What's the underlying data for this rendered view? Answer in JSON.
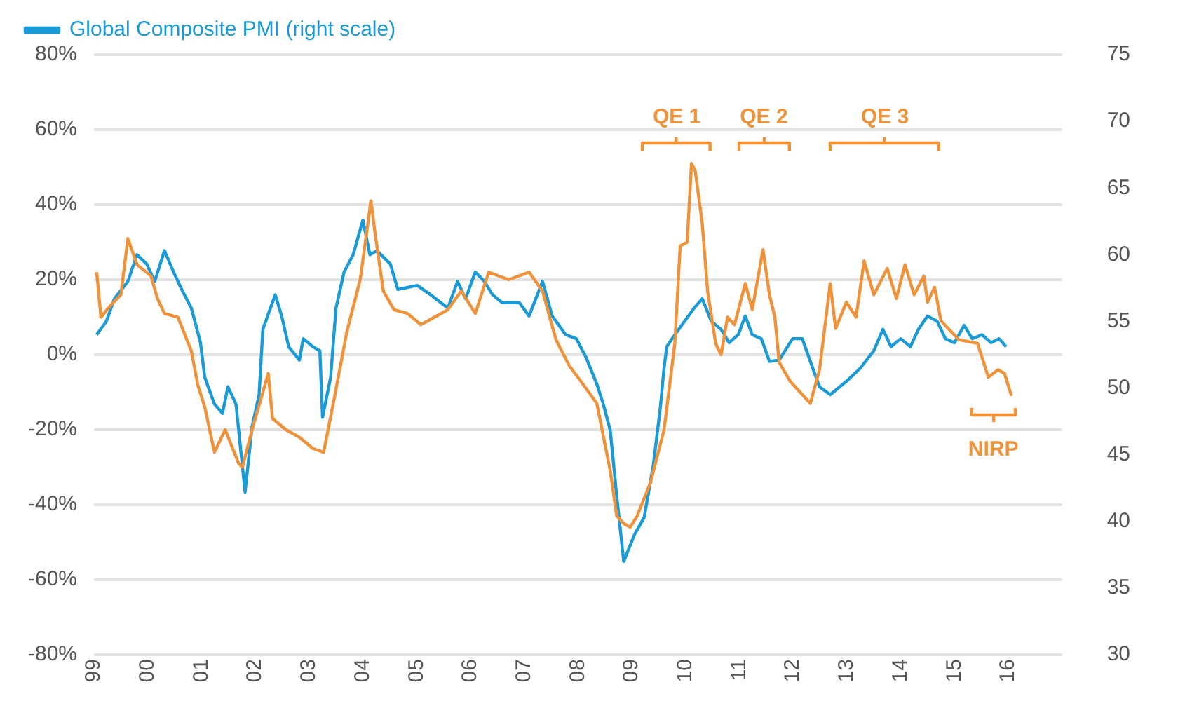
{
  "chart_data": {
    "type": "line",
    "xlim": [
      1999,
      2017
    ],
    "xticks": [
      {
        "value": 1999,
        "label": "99"
      },
      {
        "value": 2000,
        "label": "00"
      },
      {
        "value": 2001,
        "label": "01"
      },
      {
        "value": 2002,
        "label": "02"
      },
      {
        "value": 2003,
        "label": "03"
      },
      {
        "value": 2004,
        "label": "04"
      },
      {
        "value": 2005,
        "label": "05"
      },
      {
        "value": 2006,
        "label": "06"
      },
      {
        "value": 2007,
        "label": "07"
      },
      {
        "value": 2008,
        "label": "08"
      },
      {
        "value": 2009,
        "label": "09"
      },
      {
        "value": 2010,
        "label": "10"
      },
      {
        "value": 2011,
        "label": "11"
      },
      {
        "value": 2012,
        "label": "12"
      },
      {
        "value": 2013,
        "label": "13"
      },
      {
        "value": 2014,
        "label": "14"
      },
      {
        "value": 2015,
        "label": "15"
      },
      {
        "value": 2016,
        "label": "16"
      }
    ],
    "ylim": [
      -80,
      80
    ],
    "yticks": [
      {
        "value": -80,
        "label": "-80%"
      },
      {
        "value": -60,
        "label": "-60%"
      },
      {
        "value": -40,
        "label": "-40%"
      },
      {
        "value": -20,
        "label": "-20%"
      },
      {
        "value": 0,
        "label": "0%"
      },
      {
        "value": 20,
        "label": "20%"
      },
      {
        "value": 40,
        "label": "40%"
      },
      {
        "value": 60,
        "label": "60%"
      },
      {
        "value": 80,
        "label": "80%"
      }
    ],
    "y2lim": [
      30,
      75
    ],
    "y2ticks": [
      30,
      35,
      40,
      45,
      50,
      55,
      60,
      65,
      70,
      75
    ],
    "grid": "y",
    "legend": "top left",
    "series": [
      {
        "color": "#f0923a",
        "x": [
          1999.05,
          1999.13,
          1999.3,
          1999.5,
          1999.63,
          1999.8,
          2000.06,
          2000.18,
          2000.31,
          2000.56,
          2000.81,
          2000.93,
          2001.06,
          2001.24,
          2001.44,
          2001.69,
          2001.76,
          2001.94,
          2002.24,
          2002.32,
          2002.57,
          2002.82,
          2003.07,
          2003.27,
          2003.45,
          2003.7,
          2003.95,
          2004.15,
          2004.23,
          2004.38,
          2004.58,
          2004.83,
          2005.08,
          2005.33,
          2005.58,
          2005.83,
          2006.09,
          2006.34,
          2006.71,
          2007.09,
          2007.34,
          2007.59,
          2007.84,
          2008.1,
          2008.35,
          2008.6,
          2008.72,
          2008.85,
          2008.97,
          2009.1,
          2009.35,
          2009.6,
          2009.8,
          2009.9,
          2010.03,
          2010.11,
          2010.18,
          2010.31,
          2010.41,
          2010.56,
          2010.66,
          2010.78,
          2010.91,
          2011.11,
          2011.24,
          2011.44,
          2011.56,
          2011.66,
          2011.74,
          2011.94,
          2012.32,
          2012.49,
          2012.69,
          2012.79,
          2012.99,
          2013.17,
          2013.32,
          2013.5,
          2013.75,
          2013.92,
          2014.08,
          2014.25,
          2014.43,
          2014.5,
          2014.63,
          2014.75,
          2015.08,
          2015.43,
          2015.63,
          2015.81,
          2015.93,
          2016.06
        ],
        "values": [
          22,
          10,
          13,
          16,
          31,
          24,
          21,
          15,
          11,
          10,
          1,
          -8,
          -14,
          -26,
          -20,
          -29,
          -30,
          -20,
          -5,
          -17,
          -20,
          -22,
          -25,
          -26,
          -13,
          6,
          20,
          41,
          32,
          17,
          12,
          11,
          8,
          10,
          12,
          17,
          11,
          22,
          20,
          22,
          17,
          4,
          -3,
          -8,
          -13,
          -31,
          -43,
          -45,
          -46,
          -43,
          -34,
          -20,
          3,
          29,
          30,
          51,
          49,
          35,
          17,
          3,
          0,
          10,
          8,
          19,
          12,
          28,
          16,
          10,
          -2,
          -7,
          -13,
          -4,
          19,
          7,
          14,
          10,
          25,
          16,
          23,
          15,
          24,
          16,
          21,
          14,
          18,
          9,
          4,
          3,
          -6,
          -4,
          -5,
          -11
        ]
      },
      {
        "name": "Global Composite PMI (right scale)",
        "color": "#1a9ad6",
        "axis": "y2",
        "x": [
          1999.05,
          1999.23,
          1999.38,
          1999.63,
          1999.8,
          1999.98,
          2000.13,
          2000.31,
          2000.48,
          2000.63,
          2000.81,
          2000.98,
          2001.06,
          2001.24,
          2001.39,
          2001.49,
          2001.64,
          2001.81,
          2001.94,
          2002.07,
          2002.14,
          2002.37,
          2002.49,
          2002.62,
          2002.82,
          2002.89,
          2003.07,
          2003.2,
          2003.25,
          2003.4,
          2003.5,
          2003.65,
          2003.82,
          2004.0,
          2004.13,
          2004.26,
          2004.51,
          2004.65,
          2005.01,
          2005.26,
          2005.58,
          2005.76,
          2005.91,
          2006.09,
          2006.26,
          2006.41,
          2006.59,
          2006.91,
          2007.09,
          2007.34,
          2007.52,
          2007.77,
          2007.97,
          2008.15,
          2008.35,
          2008.47,
          2008.6,
          2008.72,
          2008.85,
          2009.05,
          2009.23,
          2009.4,
          2009.53,
          2009.6,
          2009.65,
          2009.8,
          2009.98,
          2010.16,
          2010.31,
          2010.48,
          2010.66,
          2010.81,
          2010.98,
          2011.11,
          2011.24,
          2011.41,
          2011.56,
          2011.74,
          2011.99,
          2012.17,
          2012.32,
          2012.49,
          2012.69,
          2012.99,
          2013.25,
          2013.5,
          2013.67,
          2013.82,
          2014.0,
          2014.18,
          2014.33,
          2014.5,
          2014.68,
          2014.83,
          2015.0,
          2015.18,
          2015.33,
          2015.51,
          2015.68,
          2015.83,
          2015.96
        ],
        "values": [
          54.0,
          55.0,
          56.7,
          58.0,
          60.0,
          59.3,
          58.0,
          60.3,
          58.7,
          57.4,
          56.0,
          53.4,
          50.8,
          48.8,
          48.1,
          50.1,
          48.8,
          42.2,
          47.1,
          49.5,
          54.4,
          57.0,
          55.4,
          53.1,
          52.1,
          53.7,
          53.1,
          52.8,
          47.8,
          50.8,
          56.0,
          58.7,
          60.0,
          62.6,
          60.0,
          60.3,
          59.3,
          57.4,
          57.7,
          57.0,
          56.0,
          58.0,
          56.7,
          58.7,
          58.0,
          57.0,
          56.4,
          56.4,
          55.4,
          58.0,
          55.4,
          54.0,
          53.7,
          52.3,
          50.3,
          48.8,
          46.8,
          41.9,
          37.0,
          39.0,
          40.3,
          44.2,
          48.5,
          51.5,
          53.1,
          54.0,
          55.0,
          56.0,
          56.7,
          55.0,
          54.4,
          53.4,
          54.0,
          55.4,
          54.0,
          53.7,
          52.0,
          52.1,
          53.7,
          53.7,
          52.0,
          50.1,
          49.5,
          50.5,
          51.5,
          52.8,
          54.4,
          53.1,
          53.7,
          53.1,
          54.4,
          55.4,
          55.0,
          53.7,
          53.4,
          54.7,
          53.7,
          54.0,
          53.4,
          53.7,
          53.1
        ]
      }
    ],
    "annotations": [
      "QE 1",
      "QE 2",
      "QE 3",
      "NIRP"
    ]
  }
}
